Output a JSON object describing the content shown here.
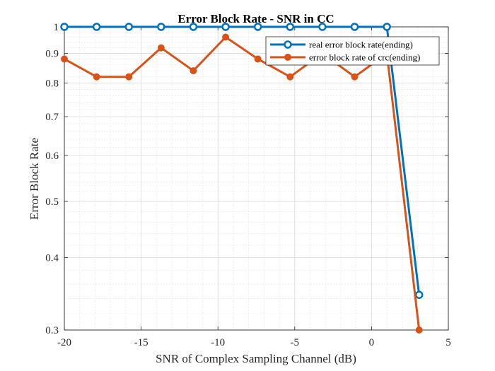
{
  "chart_data": {
    "type": "line",
    "title": "Error Block Rate - SNR in CC",
    "xlabel": "SNR of Complex Sampling Channel (dB)",
    "ylabel": "Error Block Rate",
    "xlim": [
      -20,
      5
    ],
    "ylim": [
      0.3,
      1
    ],
    "y_scale": "log",
    "x_ticks": [
      -20,
      -15,
      -10,
      -5,
      0,
      5
    ],
    "y_ticks": [
      0.3,
      0.4,
      0.5,
      0.6,
      0.7,
      0.8,
      0.9,
      1
    ],
    "y_tick_labels": [
      "0.3",
      "0.4",
      "0.5",
      "0.6",
      "0.7",
      "0.8",
      "0.9",
      "1"
    ],
    "grid": true,
    "minor_grid": true,
    "legend_position": "top-right",
    "x": [
      -20,
      -17.9,
      -15.8,
      -13.7,
      -11.6,
      -9.5,
      -7.4,
      -5.3,
      -3.2,
      -1.1,
      1,
      3.1
    ],
    "series": [
      {
        "name": "real error block rate(ending)",
        "color": "#0072BD",
        "marker": "open-circle",
        "values": [
          1,
          1,
          1,
          1,
          1,
          1,
          1,
          1,
          1,
          1,
          1,
          0.345
        ]
      },
      {
        "name": "error block rate of crc(ending)",
        "color": "#D95319",
        "marker": "filled-circle",
        "values": [
          0.88,
          0.82,
          0.82,
          0.92,
          0.84,
          0.96,
          0.88,
          0.82,
          0.9,
          0.82,
          0.9,
          0.3
        ]
      }
    ]
  }
}
